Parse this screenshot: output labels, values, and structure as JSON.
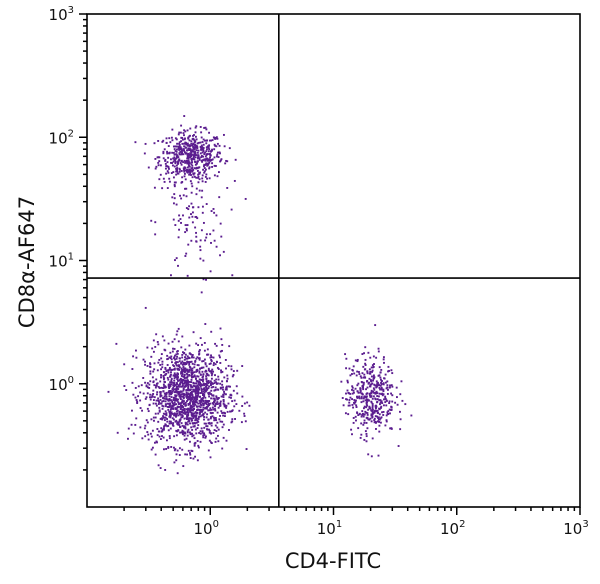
{
  "chart_data": {
    "type": "scatter",
    "title": "",
    "xlabel": "CD4-FITC",
    "ylabel": "CD8α-AF647",
    "xscale": "log",
    "yscale": "log",
    "xlim": [
      0.1,
      1000
    ],
    "ylim": [
      0.1,
      1000
    ],
    "x_tick_labels": [
      {
        "base": "10",
        "exp": "0",
        "value": 1
      },
      {
        "base": "10",
        "exp": "1",
        "value": 10
      },
      {
        "base": "10",
        "exp": "2",
        "value": 100
      },
      {
        "base": "10",
        "exp": "3",
        "value": 1000
      }
    ],
    "y_tick_labels": [
      {
        "base": "10",
        "exp": "0",
        "value": 1
      },
      {
        "base": "10",
        "exp": "1",
        "value": 10
      },
      {
        "base": "10",
        "exp": "2",
        "value": 100
      },
      {
        "base": "10",
        "exp": "3",
        "value": 1000
      }
    ],
    "grid": false,
    "quadrant_gates": {
      "x": 3.6,
      "y": 7.2
    },
    "point_color": "#5b1d8f",
    "populations": [
      {
        "center_x": 0.7,
        "center_y": 70,
        "sd_log_x": 0.13,
        "sd_log_y": 0.1,
        "count": 520
      },
      {
        "center_x": 0.7,
        "center_y": 20,
        "sd_log_x": 0.14,
        "sd_log_y": 0.25,
        "count": 110
      },
      {
        "center_x": 0.65,
        "center_y": 0.8,
        "sd_log_x": 0.17,
        "sd_log_y": 0.2,
        "count": 1500
      },
      {
        "center_x": 20,
        "center_y": 0.8,
        "sd_log_x": 0.1,
        "sd_log_y": 0.16,
        "count": 430
      }
    ]
  }
}
